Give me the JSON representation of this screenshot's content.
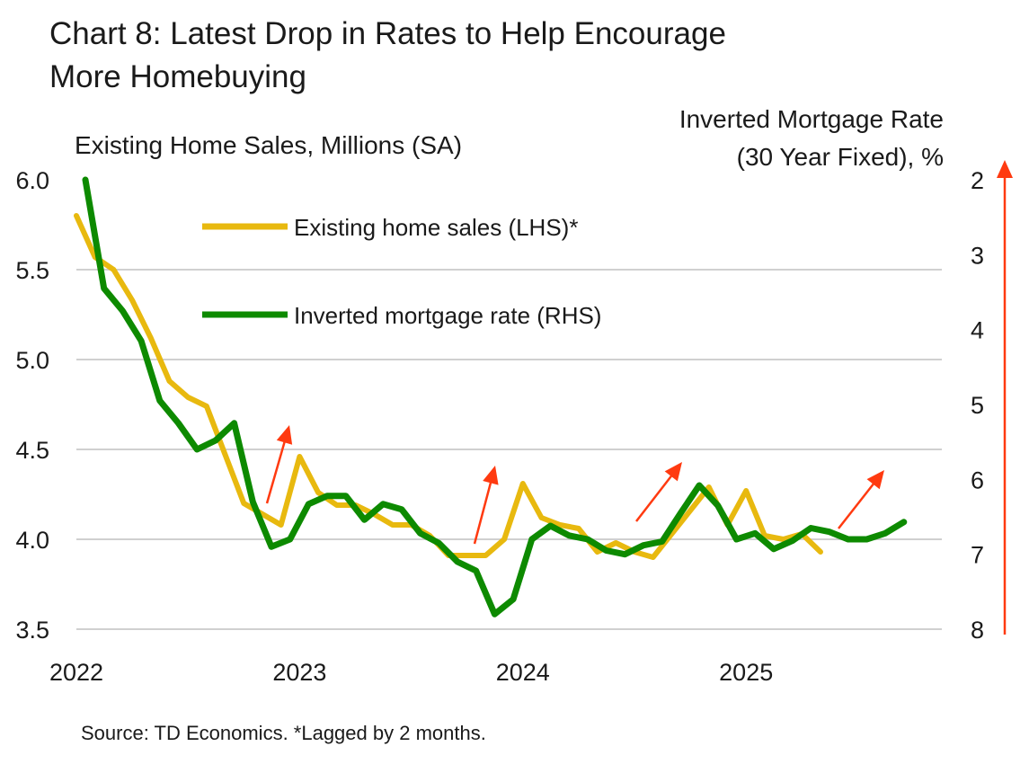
{
  "title_line1": "Chart 8: Latest Drop in Rates to Help Encourage",
  "title_line2": "More Homebuying",
  "source": "Source: TD Economics. *Lagged by 2 months.",
  "colors": {
    "sales": "#E8B90F",
    "mortgage": "#0D8A00",
    "arrow": "#FF3A10",
    "grid": "#d0d0d0"
  },
  "chart_data": {
    "type": "line",
    "ylabel_left": "Existing Home Sales, Millions (SA)",
    "ylabel_right_line1": "Inverted Mortgage Rate",
    "ylabel_right_line2": "(30 Year Fixed), %",
    "ylim_left": [
      3.5,
      6.0
    ],
    "ylim_right_inverted": [
      2,
      8
    ],
    "yticks_left": [
      "6.0",
      "5.5",
      "5.0",
      "4.5",
      "4.0",
      "3.5"
    ],
    "yticks_right": [
      "2",
      "3",
      "4",
      "5",
      "6",
      "7",
      "8"
    ],
    "xticks": [
      "2022",
      "2023",
      "2024",
      "2025"
    ],
    "legend_placement": "top-left",
    "grid": true,
    "series": [
      {
        "name": "Existing home sales (LHS)*",
        "axis": "left",
        "start": "2022-01",
        "values": [
          5.8,
          5.57,
          5.5,
          5.33,
          5.12,
          4.88,
          4.79,
          4.74,
          4.47,
          4.2,
          4.14,
          4.08,
          4.46,
          4.26,
          4.19,
          4.19,
          4.14,
          4.08,
          4.08,
          4.02,
          3.91,
          3.91,
          3.91,
          4.0,
          4.31,
          4.12,
          4.08,
          4.06,
          3.93,
          3.98,
          3.93,
          3.9,
          4.03,
          4.16,
          4.29,
          4.08,
          4.27,
          4.02,
          4.0,
          4.03,
          3.93
        ]
      },
      {
        "name": "Inverted mortgage rate (RHS)",
        "axis": "right",
        "start": "2022-01",
        "values": [
          2.0,
          3.45,
          3.75,
          4.15,
          4.95,
          5.25,
          5.6,
          5.48,
          5.25,
          6.3,
          6.9,
          6.8,
          6.33,
          6.22,
          6.22,
          6.54,
          6.33,
          6.4,
          6.72,
          6.85,
          7.1,
          7.22,
          7.8,
          7.6,
          6.8,
          6.62,
          6.75,
          6.8,
          6.95,
          7.0,
          6.88,
          6.83,
          6.45,
          6.08,
          6.35,
          6.8,
          6.72,
          6.93,
          6.82,
          6.65,
          6.7,
          6.8,
          6.8,
          6.72,
          6.57
        ]
      }
    ]
  }
}
